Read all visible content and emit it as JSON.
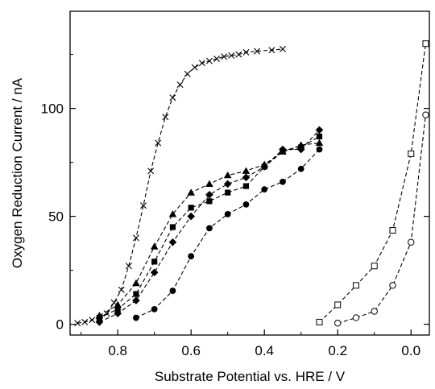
{
  "chart_data": {
    "type": "scatter",
    "title": "",
    "xlabel": "Substrate Potential vs. HRE / V",
    "ylabel": "Oxygen Reduction Current / nA",
    "xlim": [
      0.93,
      -0.05
    ],
    "ylim": [
      -5,
      145
    ],
    "x_reversed": true,
    "x_ticks": [
      0.8,
      0.6,
      0.4,
      0.2,
      0.0
    ],
    "x_tick_labels": [
      "0.8",
      "0.6",
      "0.4",
      "0.2",
      "0.0"
    ],
    "y_ticks": [
      0,
      50,
      100
    ],
    "y_tick_labels": [
      "0",
      "50",
      "100"
    ],
    "grid": false,
    "legend": "none",
    "series": [
      {
        "marker": "cross",
        "color": "#000000",
        "x": [
          0.91,
          0.89,
          0.87,
          0.85,
          0.83,
          0.81,
          0.79,
          0.77,
          0.75,
          0.73,
          0.71,
          0.69,
          0.67,
          0.65,
          0.63,
          0.61,
          0.59,
          0.57,
          0.55,
          0.53,
          0.51,
          0.49,
          0.47,
          0.45,
          0.42,
          0.38,
          0.35
        ],
        "y": [
          0.5,
          1,
          2,
          3,
          5,
          10,
          16,
          27,
          40,
          55,
          71,
          84,
          96,
          105,
          111,
          116,
          119,
          121,
          122,
          123,
          124,
          124.5,
          125,
          126,
          126.5,
          127,
          127.5
        ]
      },
      {
        "marker": "triangle-filled",
        "color": "#000000",
        "x": [
          0.85,
          0.8,
          0.75,
          0.7,
          0.65,
          0.6,
          0.55,
          0.5,
          0.45,
          0.4,
          0.35,
          0.3,
          0.25
        ],
        "y": [
          4,
          9,
          19,
          36,
          51,
          61,
          65,
          69,
          71,
          74,
          80,
          83,
          84
        ]
      },
      {
        "marker": "square-filled",
        "color": "#000000",
        "x": [
          0.85,
          0.8,
          0.75,
          0.7,
          0.65,
          0.6,
          0.55,
          0.5,
          0.45,
          0.4,
          0.35,
          0.3,
          0.25
        ],
        "y": [
          3,
          7,
          14,
          29,
          45,
          54,
          57,
          61,
          64,
          73,
          80,
          82,
          87
        ]
      },
      {
        "marker": "diamond-filled",
        "color": "#000000",
        "x": [
          0.85,
          0.8,
          0.75,
          0.7,
          0.65,
          0.6,
          0.55,
          0.5,
          0.45,
          0.4,
          0.35,
          0.3,
          0.25
        ],
        "y": [
          1,
          5,
          11,
          24,
          38,
          50,
          60,
          65,
          68,
          73,
          81,
          81,
          90
        ]
      },
      {
        "marker": "circle-filled",
        "color": "#000000",
        "x": [
          0.75,
          0.7,
          0.65,
          0.6,
          0.55,
          0.5,
          0.45,
          0.4,
          0.35,
          0.3,
          0.25
        ],
        "y": [
          3,
          7,
          15.5,
          31.5,
          44.5,
          51,
          55.5,
          62.5,
          66,
          72,
          81
        ]
      },
      {
        "marker": "square-open",
        "color": "#000000",
        "x": [
          0.25,
          0.2,
          0.15,
          0.1,
          0.05,
          0.0,
          -0.04
        ],
        "y": [
          1,
          9,
          18,
          27,
          43.5,
          79,
          130
        ]
      },
      {
        "marker": "circle-open",
        "color": "#000000",
        "x": [
          0.2,
          0.15,
          0.1,
          0.05,
          0.0,
          -0.04
        ],
        "y": [
          0.5,
          3,
          6,
          18,
          38,
          97
        ]
      }
    ]
  }
}
